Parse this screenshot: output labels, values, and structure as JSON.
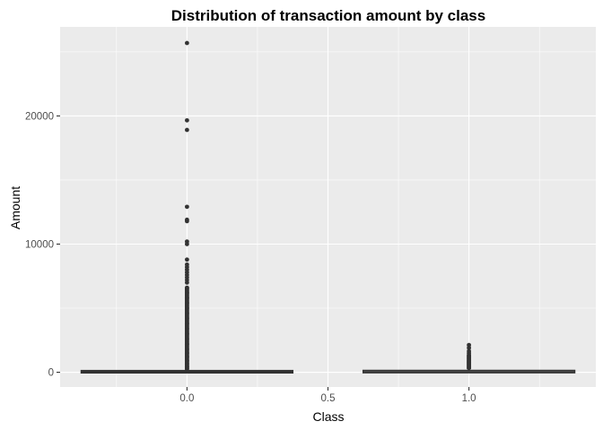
{
  "chart_data": {
    "type": "boxplot",
    "title": "Distribution of transaction amount by class",
    "xlabel": "Class",
    "ylabel": "Amount",
    "x_ticks": [
      0.0,
      0.5,
      1.0
    ],
    "x_tick_labels": [
      "0.0",
      "0.5",
      "1.0"
    ],
    "y_ticks": [
      0,
      10000,
      20000
    ],
    "y_tick_labels": [
      "0",
      "10000",
      "20000"
    ],
    "xlim": [
      -0.45,
      1.45
    ],
    "ylim": [
      -1150,
      26950
    ],
    "grid": true,
    "panel_background": "#ebebeb",
    "grid_color": "#ffffff",
    "mark_color": "#333333",
    "groups": [
      {
        "class": 0.0,
        "box_width": 0.75,
        "q1": 5.6,
        "median": 22,
        "q3": 77,
        "whisker_low": 0,
        "whisker_high": 185,
        "outliers": [
          25691,
          19656,
          18910,
          12910,
          11898,
          11790,
          10200,
          10000,
          8790,
          8400,
          8200,
          8000,
          7800,
          7600,
          7400,
          7200,
          7000,
          6600,
          6200,
          5800,
          5400,
          5000,
          4600,
          4200,
          3800,
          3400,
          3000,
          2600,
          2200,
          1800,
          1500,
          1200,
          900,
          650,
          450,
          300
        ]
      },
      {
        "class": 1.0,
        "box_width": 0.75,
        "q1": 1,
        "median": 9,
        "q3": 105,
        "whisker_low": 0,
        "whisker_high": 260,
        "outliers": [
          2126,
          1900,
          1650,
          1500,
          1350,
          1200,
          1050,
          900,
          800,
          700,
          600,
          500,
          400,
          330
        ]
      }
    ]
  }
}
